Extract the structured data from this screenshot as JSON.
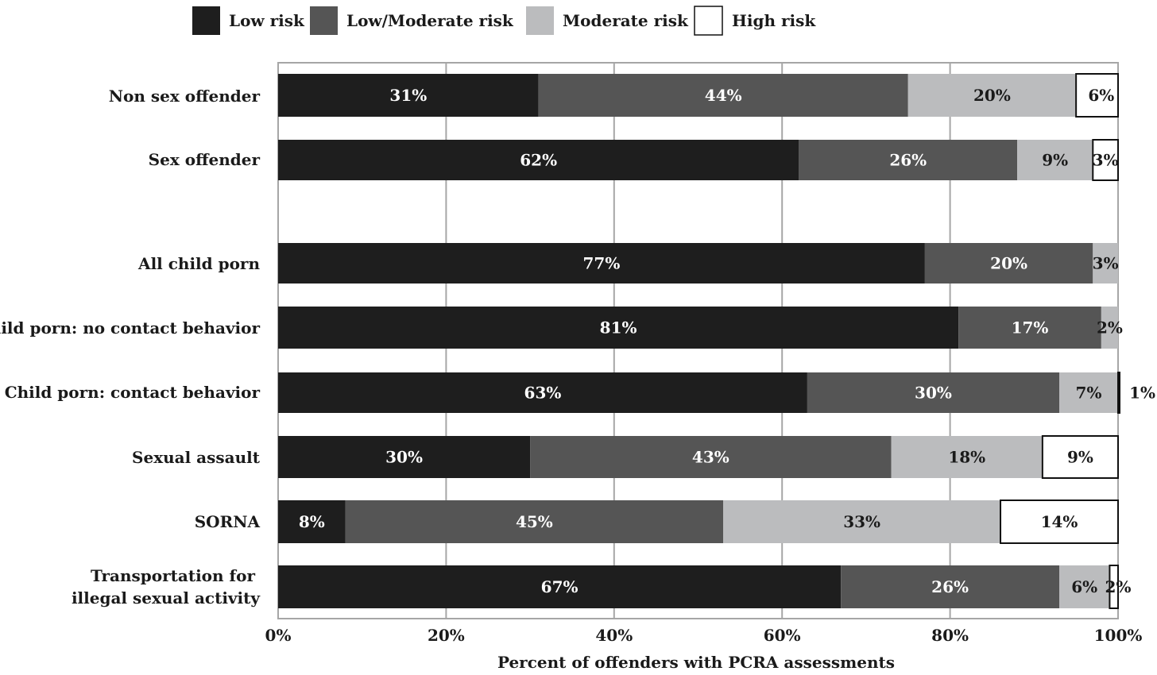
{
  "chart_data": {
    "type": "bar",
    "orientation": "horizontal",
    "stacked": true,
    "title": "",
    "xlabel": "Percent of offenders with PCRA assessments",
    "ylabel": "",
    "xlim": [
      0,
      100
    ],
    "x_ticks": [
      "0%",
      "20%",
      "40%",
      "60%",
      "80%",
      "100%"
    ],
    "grid": true,
    "legend_position": "top",
    "categories": [
      "Non sex offender",
      "Sex offender",
      "All child porn",
      "Child porn: no contact behavior",
      "Child porn: contact behavior",
      "Sexual assault",
      "SORNA",
      "Transportation for illegal sexual activity"
    ],
    "series": [
      {
        "name": "Low risk",
        "color": "#1e1e1e",
        "label_color": "#ffffff",
        "values": [
          31,
          62,
          77,
          81,
          63,
          30,
          8,
          67
        ],
        "labels": [
          "31%",
          "62%",
          "77%",
          "81%",
          "63%",
          "30%",
          "8%",
          "67%"
        ]
      },
      {
        "name": "Low/Moderate risk",
        "color": "#555555",
        "label_color": "#ffffff",
        "values": [
          44,
          26,
          20,
          17,
          30,
          43,
          45,
          26
        ],
        "labels": [
          "44%",
          "26%",
          "20%",
          "17%",
          "30%",
          "43%",
          "45%",
          "26%"
        ]
      },
      {
        "name": "Moderate risk",
        "color": "#bbbcbe",
        "label_color": "#1a1a1a",
        "values": [
          20,
          9,
          3,
          2,
          7,
          18,
          33,
          6
        ],
        "labels": [
          "20%",
          "9%",
          "3%",
          "2%",
          "7%",
          "18%",
          "33%",
          "6%"
        ]
      },
      {
        "name": "High risk",
        "color": "#ffffff",
        "label_color": "#1a1a1a",
        "values": [
          6,
          3,
          0,
          0,
          1,
          9,
          14,
          2
        ],
        "labels": [
          "6%",
          "3%",
          "",
          "",
          "1%",
          "9%",
          "14%",
          "2%"
        ]
      }
    ]
  }
}
